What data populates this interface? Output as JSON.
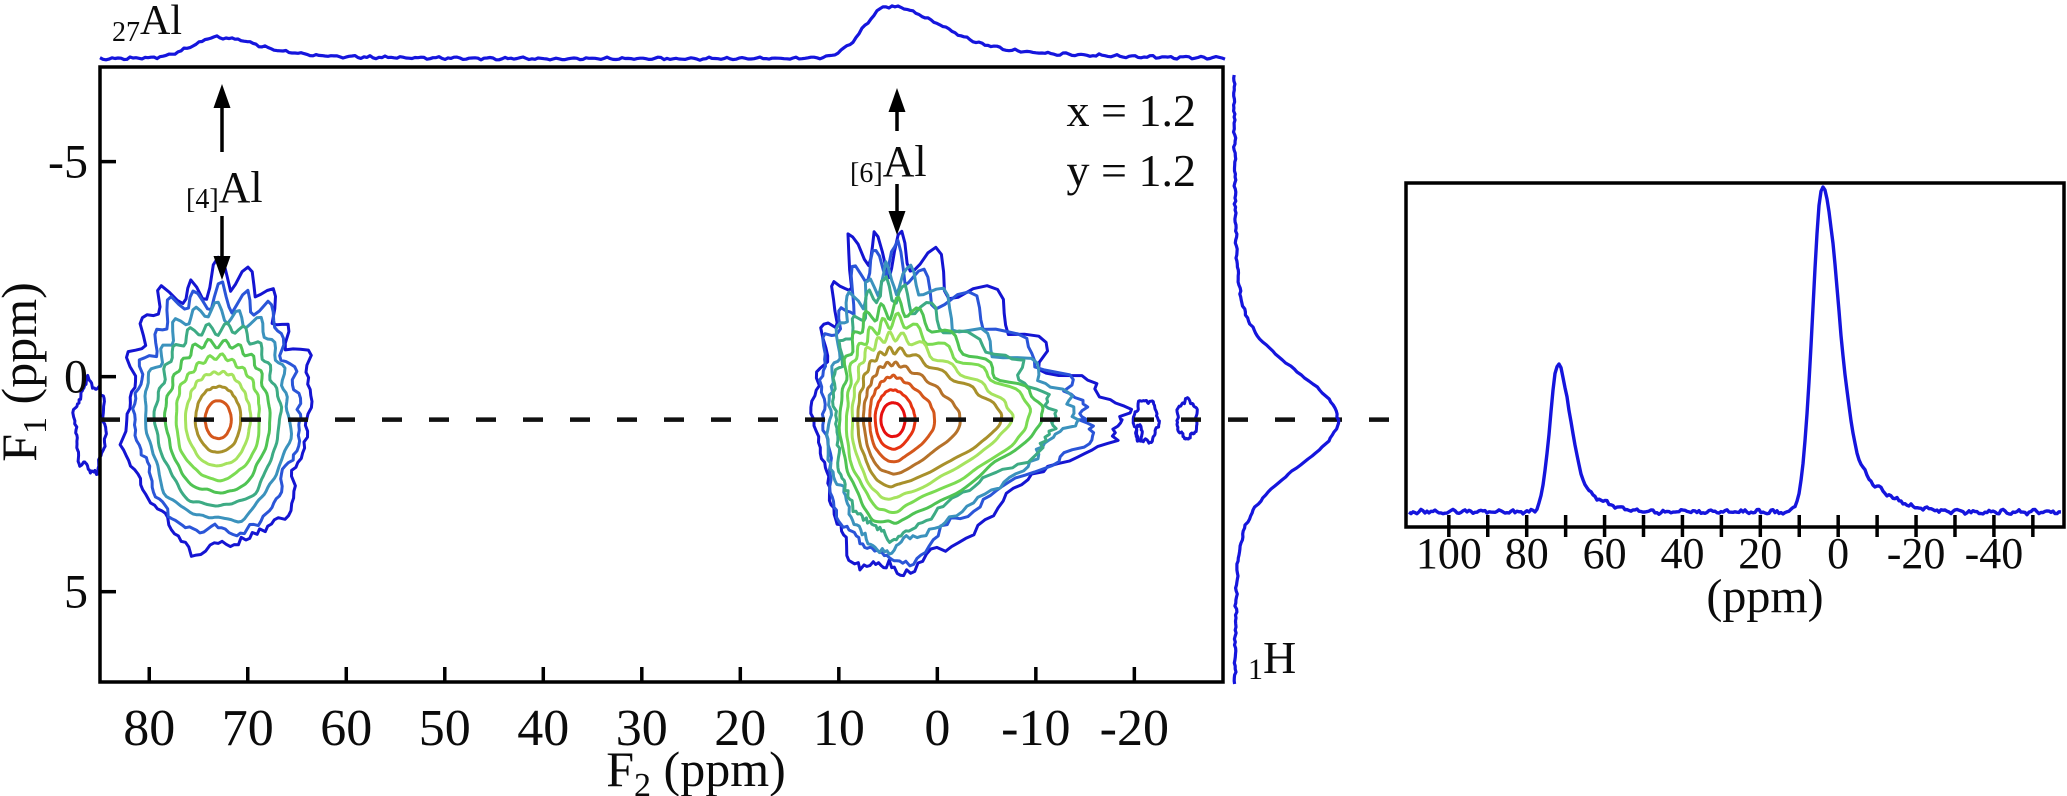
{
  "figure": {
    "description": "2D 27Al-1H HETCOR NMR spectrum with top and right 1D projections and a separate 1D 27Al spectrum inset",
    "colors": {
      "background": "#ffffff",
      "frame": "#000000",
      "trace_blue": "#1515dd",
      "dashed_line": "#111111",
      "contour_palette_inner_to_outer": [
        "#e60f0f",
        "#e63311",
        "#d4571c",
        "#b5722a",
        "#a8902b",
        "#a6e35e",
        "#7bdb52",
        "#4fc353",
        "#3dab84",
        "#3b92bd",
        "#2a55d8",
        "#1414d2"
      ]
    },
    "labels": {
      "top_nucleus_sub": "27",
      "top_nucleus": "Al",
      "right_nucleus_sub": "1",
      "right_nucleus": "H",
      "site4_sub": "[4]",
      "site4": "Al",
      "site6_sub": "[6]",
      "site6": "Al",
      "annotation_line1": "x = 1.2",
      "annotation_line2": "y = 1.2",
      "main_xlabel_pre": "F",
      "main_xlabel_sub": "2",
      "main_xlabel_post": " (ppm)",
      "main_ylabel_pre": "F",
      "main_ylabel_sub": "1",
      "main_ylabel_post": " (ppm)",
      "inset_xlabel": "(ppm)"
    }
  },
  "chart_data": [
    {
      "id": "hetcor-2d",
      "type": "heatmap",
      "subtype": "contour-map",
      "title": "2D 27Al-1H HETCOR correlation map",
      "xlabel": "F2 (ppm)",
      "ylabel": "F1 (ppm)",
      "x_ticks": [
        80,
        70,
        60,
        50,
        40,
        30,
        20,
        10,
        0,
        -10,
        -20
      ],
      "x_range": [
        85,
        -29
      ],
      "y_ticks": [
        -5,
        0,
        5
      ],
      "y_range": [
        -7.2,
        7.1
      ],
      "grid": false,
      "axes_note": "ppm axes run high-to-low (NMR convention)",
      "cross_section_f1_ppm": 1.0,
      "contour_levels_low_to_high": "blue - teal - green - olive - orange - red",
      "peaks": [
        {
          "assignment": "[4]Al",
          "f2_ppm": 73,
          "f1_ppm": 1.0,
          "levels": 9,
          "f2_extent_ppm": [
            83,
            66
          ],
          "f1_extent_ppm": [
            -2.0,
            4.1
          ]
        },
        {
          "assignment": "[6]Al",
          "f2_ppm": 4.5,
          "f1_ppm": 1.0,
          "levels": 12,
          "f2_extent_ppm": [
            12,
            -23
          ],
          "f1_extent_ppm": [
            -3.4,
            4.7
          ]
        }
      ],
      "projections": {
        "top": {
          "nucleus": "27Al",
          "peaks": [
            {
              "ppm": 73,
              "rel_height": 0.4
            },
            {
              "ppm": 5,
              "rel_height": 1.0
            }
          ]
        },
        "right": {
          "nucleus": "1H",
          "peaks": [
            {
              "ppm": 1.0,
              "rel_height": 1.0
            }
          ]
        }
      },
      "annotations": [
        "x = 1.2",
        "y = 1.2",
        "[4]Al",
        "[6]Al"
      ]
    },
    {
      "id": "al-1d-inset",
      "type": "line",
      "title": "1D 27Al spectrum inset",
      "xlabel": "(ppm)",
      "x_ticks": [
        100,
        80,
        60,
        40,
        20,
        0,
        -20,
        -40
      ],
      "x_minor_tick_step": 10,
      "x_tick_extent": [
        100,
        -50
      ],
      "x_range": [
        111,
        -58
      ],
      "peaks": [
        {
          "ppm": 72,
          "rel_height": 0.45
        },
        {
          "ppm": 4,
          "rel_height": 1.0
        }
      ],
      "baseline": "flat with low noise"
    }
  ]
}
